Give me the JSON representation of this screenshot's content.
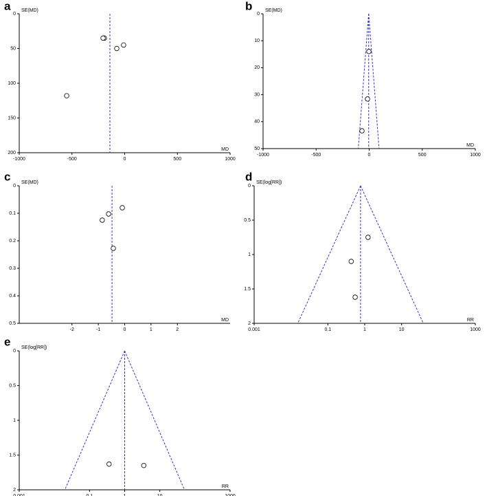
{
  "chart_data": [
    {
      "type": "scatter",
      "label": "a",
      "ylabel": "SE(MD)",
      "xlabel": "MD",
      "log_x": false,
      "y_inverted": true,
      "funnel": false,
      "pooled": -140,
      "x": [
        -193,
        -205,
        -75,
        -10,
        -550
      ],
      "y": [
        35,
        35,
        50,
        45,
        118
      ],
      "xlim": [
        -1000,
        1000
      ],
      "xticks": [
        -1000,
        -500,
        0,
        500,
        1000
      ],
      "ylim": [
        0,
        200
      ],
      "yticks": [
        0,
        50,
        100,
        150,
        200
      ],
      "color": "#3333cc"
    },
    {
      "type": "scatter",
      "label": "b",
      "ylabel": "SE(MD)",
      "xlabel": "MD",
      "log_x": false,
      "y_inverted": true,
      "funnel": true,
      "pooled": -5,
      "x": [
        -3,
        -16,
        -68
      ],
      "y": [
        14,
        31.6,
        43.4
      ],
      "xlim": [
        -1000,
        1000
      ],
      "xticks": [
        -1000,
        -500,
        0,
        500,
        1000
      ],
      "ylim": [
        0,
        50
      ],
      "yticks": [
        0,
        10,
        20,
        30,
        40,
        50
      ],
      "color": "#3333cc"
    },
    {
      "type": "scatter",
      "label": "c",
      "ylabel": "SE(MD)",
      "xlabel": "MD",
      "log_x": false,
      "y_inverted": true,
      "funnel": false,
      "pooled": -0.48,
      "x": [
        -0.09,
        -0.61,
        -0.85,
        -0.43
      ],
      "y": [
        0.08,
        0.1025,
        0.125,
        0.2275
      ],
      "xlim": [
        -4,
        4
      ],
      "xticks": [
        -2,
        -1,
        0,
        1,
        2
      ],
      "ylim": [
        0,
        0.5
      ],
      "yticks": [
        0,
        0.1,
        0.2,
        0.3,
        0.4,
        0.5
      ],
      "color": "#3333cc"
    },
    {
      "type": "scatter",
      "label": "d",
      "ylabel": "SE(log[RR])",
      "xlabel": "RR",
      "log_x": true,
      "y_inverted": true,
      "funnel": true,
      "pooled": 0.77,
      "x": [
        1.23,
        0.43,
        0.55
      ],
      "y": [
        0.75,
        1.1,
        1.62
      ],
      "xlim": [
        0.001,
        1000
      ],
      "xticks": [
        0.001,
        0.1,
        1,
        10,
        1000
      ],
      "ylim": [
        0,
        2
      ],
      "yticks": [
        0,
        0.5,
        1,
        1.5,
        2
      ],
      "color": "#3333cc"
    },
    {
      "type": "scatter",
      "label": "e",
      "ylabel": "SE(log[RR])",
      "xlabel": "RR",
      "log_x": true,
      "y_inverted": true,
      "funnel": true,
      "pooled": 1,
      "x": [
        0.36,
        3.5
      ],
      "y": [
        1.63,
        1.65
      ],
      "xlim": [
        0.001,
        1000
      ],
      "xticks": [
        0.001,
        0.1,
        1,
        10,
        1000
      ],
      "ylim": [
        0,
        2
      ],
      "yticks": [
        0,
        0.5,
        1,
        1.5,
        2
      ],
      "color": "#3333cc"
    }
  ]
}
